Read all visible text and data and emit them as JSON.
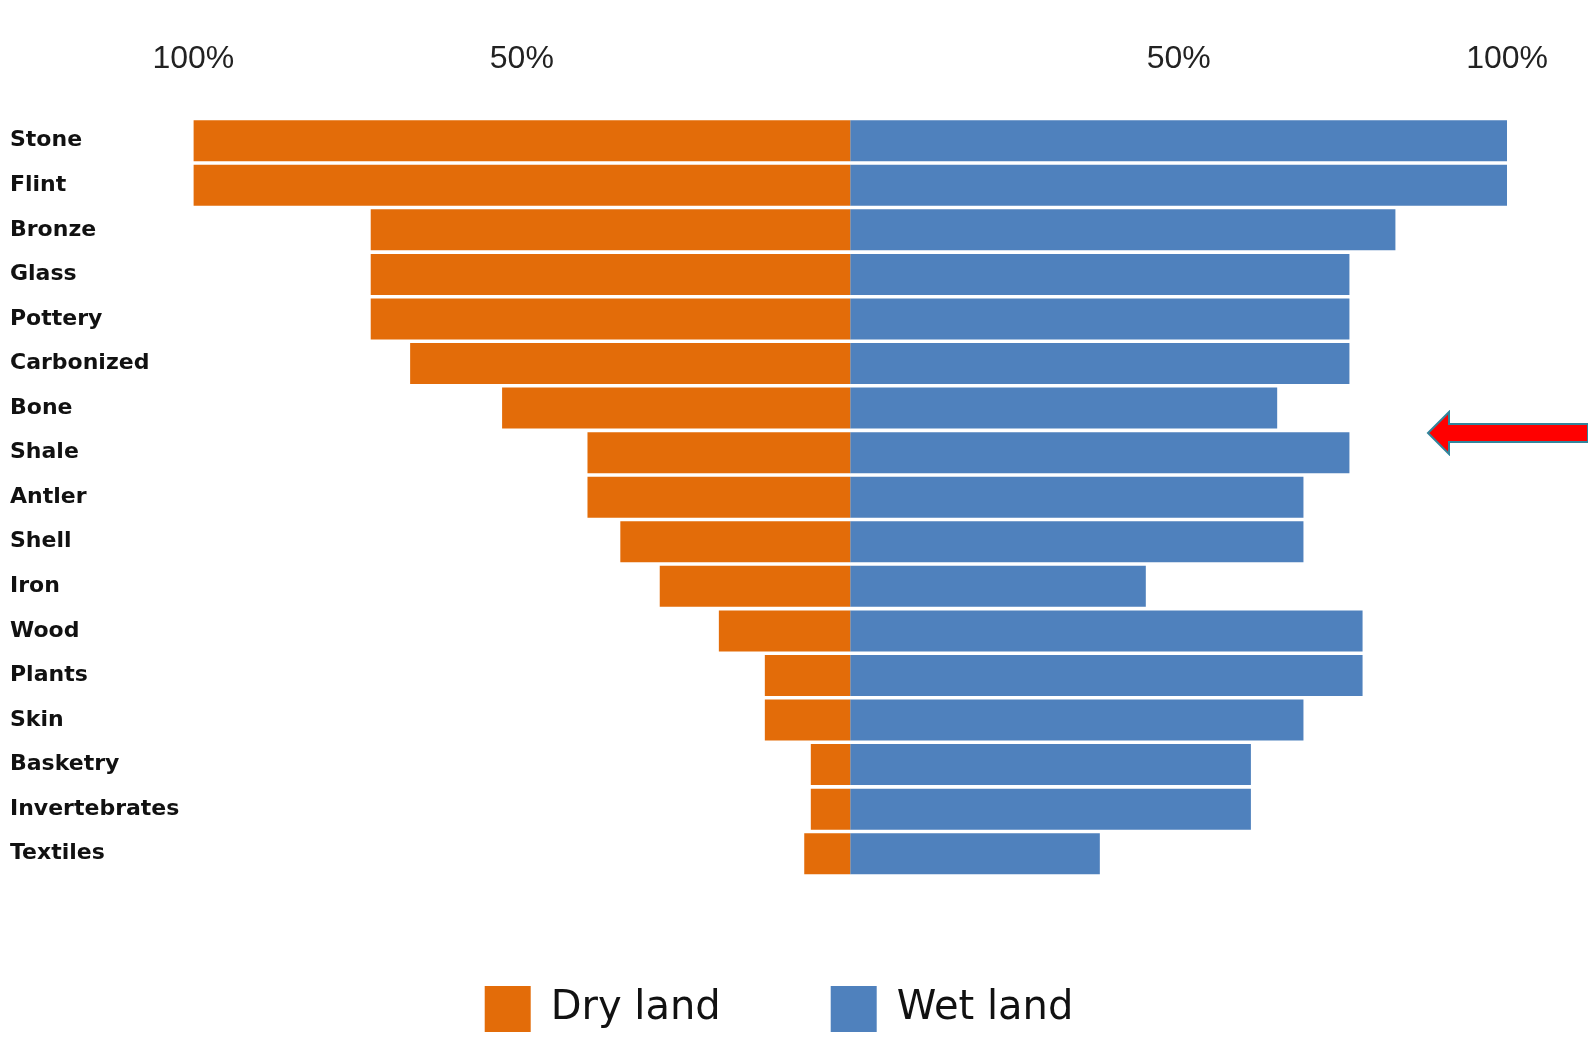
{
  "chart_data": {
    "type": "bar",
    "orientation": "horizontal",
    "stacked": true,
    "categories": [
      "Stone",
      "Flint",
      "Bronze",
      "Glass",
      "Pottery",
      "Carbonized",
      "Bone",
      "Shale",
      "Antler",
      "Shell",
      "Iron",
      "Wood",
      "Plants",
      "Skin",
      "Basketry",
      "Invertebrates",
      "Textiles"
    ],
    "series": [
      {
        "name": "Dry land",
        "color": "#e36c09",
        "values": [
          -100,
          -100,
          -73,
          -73,
          -73,
          -67,
          -53,
          -40,
          -40,
          -35,
          -29,
          -20,
          -13,
          -13,
          -6,
          -6,
          -7
        ]
      },
      {
        "name": "Wet land",
        "color": "#4f81bd",
        "values": [
          100,
          100,
          83,
          76,
          76,
          76,
          65,
          76,
          69,
          69,
          45,
          78,
          78,
          69,
          61,
          61,
          38
        ]
      }
    ],
    "xlim": [
      -100,
      100
    ],
    "xticks": [
      {
        "value": -100,
        "label": "100%"
      },
      {
        "value": -50,
        "label": "50%"
      },
      {
        "value": 50,
        "label": "50%"
      },
      {
        "value": 100,
        "label": "100%"
      }
    ],
    "grid": false,
    "legend": "bottom"
  }
}
